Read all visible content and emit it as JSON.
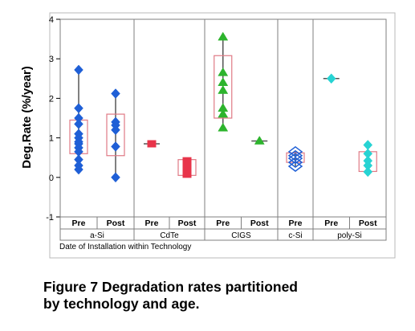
{
  "figure": {
    "caption_line1": "Figure 7  Degradation rates partitioned",
    "caption_line2": "by technology and age."
  },
  "chart_data": {
    "type": "scatter",
    "ylabel": "Deg.Rate (%/year)",
    "xlabel": "Date of Installation within Technology",
    "ylim": [
      -1,
      4
    ],
    "yticks": [
      -1,
      0,
      1,
      2,
      3,
      4
    ],
    "grid": false,
    "groups": [
      {
        "technology": "a-Si",
        "subgroups": [
          {
            "label": "Pre",
            "marker": "diamond",
            "color": "#1f5fd6",
            "values": [
              2.72,
              1.75,
              1.5,
              1.35,
              1.1,
              1.0,
              0.9,
              0.85,
              0.75,
              0.65,
              0.45,
              0.3,
              0.2
            ],
            "box": [
              0.6,
              1.45
            ],
            "range": [
              0.2,
              2.72
            ]
          },
          {
            "label": "Post",
            "marker": "diamond",
            "color": "#1f5fd6",
            "values": [
              2.12,
              1.4,
              1.32,
              1.2,
              0.78,
              0.0
            ],
            "box": [
              0.55,
              1.6
            ],
            "range": [
              0.0,
              2.12
            ]
          }
        ]
      },
      {
        "technology": "CdTe",
        "subgroups": [
          {
            "label": "Pre",
            "marker": "square",
            "color": "#e8344a",
            "values": [
              0.85
            ],
            "box": null,
            "range": null
          },
          {
            "label": "Post",
            "marker": "square",
            "color": "#e8344a",
            "values": [
              0.42,
              0.3,
              0.18,
              0.08
            ],
            "box": [
              0.05,
              0.45
            ],
            "range": null
          }
        ]
      },
      {
        "technology": "CIGS",
        "subgroups": [
          {
            "label": "Pre",
            "marker": "triangle",
            "color": "#2db42d",
            "values": [
              3.55,
              2.65,
              2.4,
              2.2,
              1.75,
              1.6,
              1.25
            ],
            "box": [
              1.5,
              3.08
            ],
            "range": [
              1.25,
              3.55
            ]
          },
          {
            "label": "Post",
            "marker": "triangle",
            "color": "#2db42d",
            "values": [
              0.92
            ],
            "box": null,
            "range": null
          }
        ]
      },
      {
        "technology": "c-Si",
        "subgroups": [
          {
            "label": "Pre",
            "marker": "diamond-open",
            "color": "#1f5fd6",
            "values": [
              0.65,
              0.55,
              0.48,
              0.38,
              0.28
            ],
            "box": [
              0.38,
              0.62
            ],
            "range": [
              0.28,
              0.65
            ]
          }
        ]
      },
      {
        "technology": "poly-Si",
        "subgroups": [
          {
            "label": "Pre",
            "marker": "diamond",
            "color": "#27d3d3",
            "values": [
              2.5
            ],
            "box": null,
            "range": null
          },
          {
            "label": "Post",
            "marker": "diamond",
            "color": "#27d3d3",
            "values": [
              0.82,
              0.6,
              0.42,
              0.3,
              0.14
            ],
            "box": [
              0.15,
              0.65
            ],
            "range": [
              0.14,
              0.82
            ]
          }
        ]
      }
    ]
  }
}
